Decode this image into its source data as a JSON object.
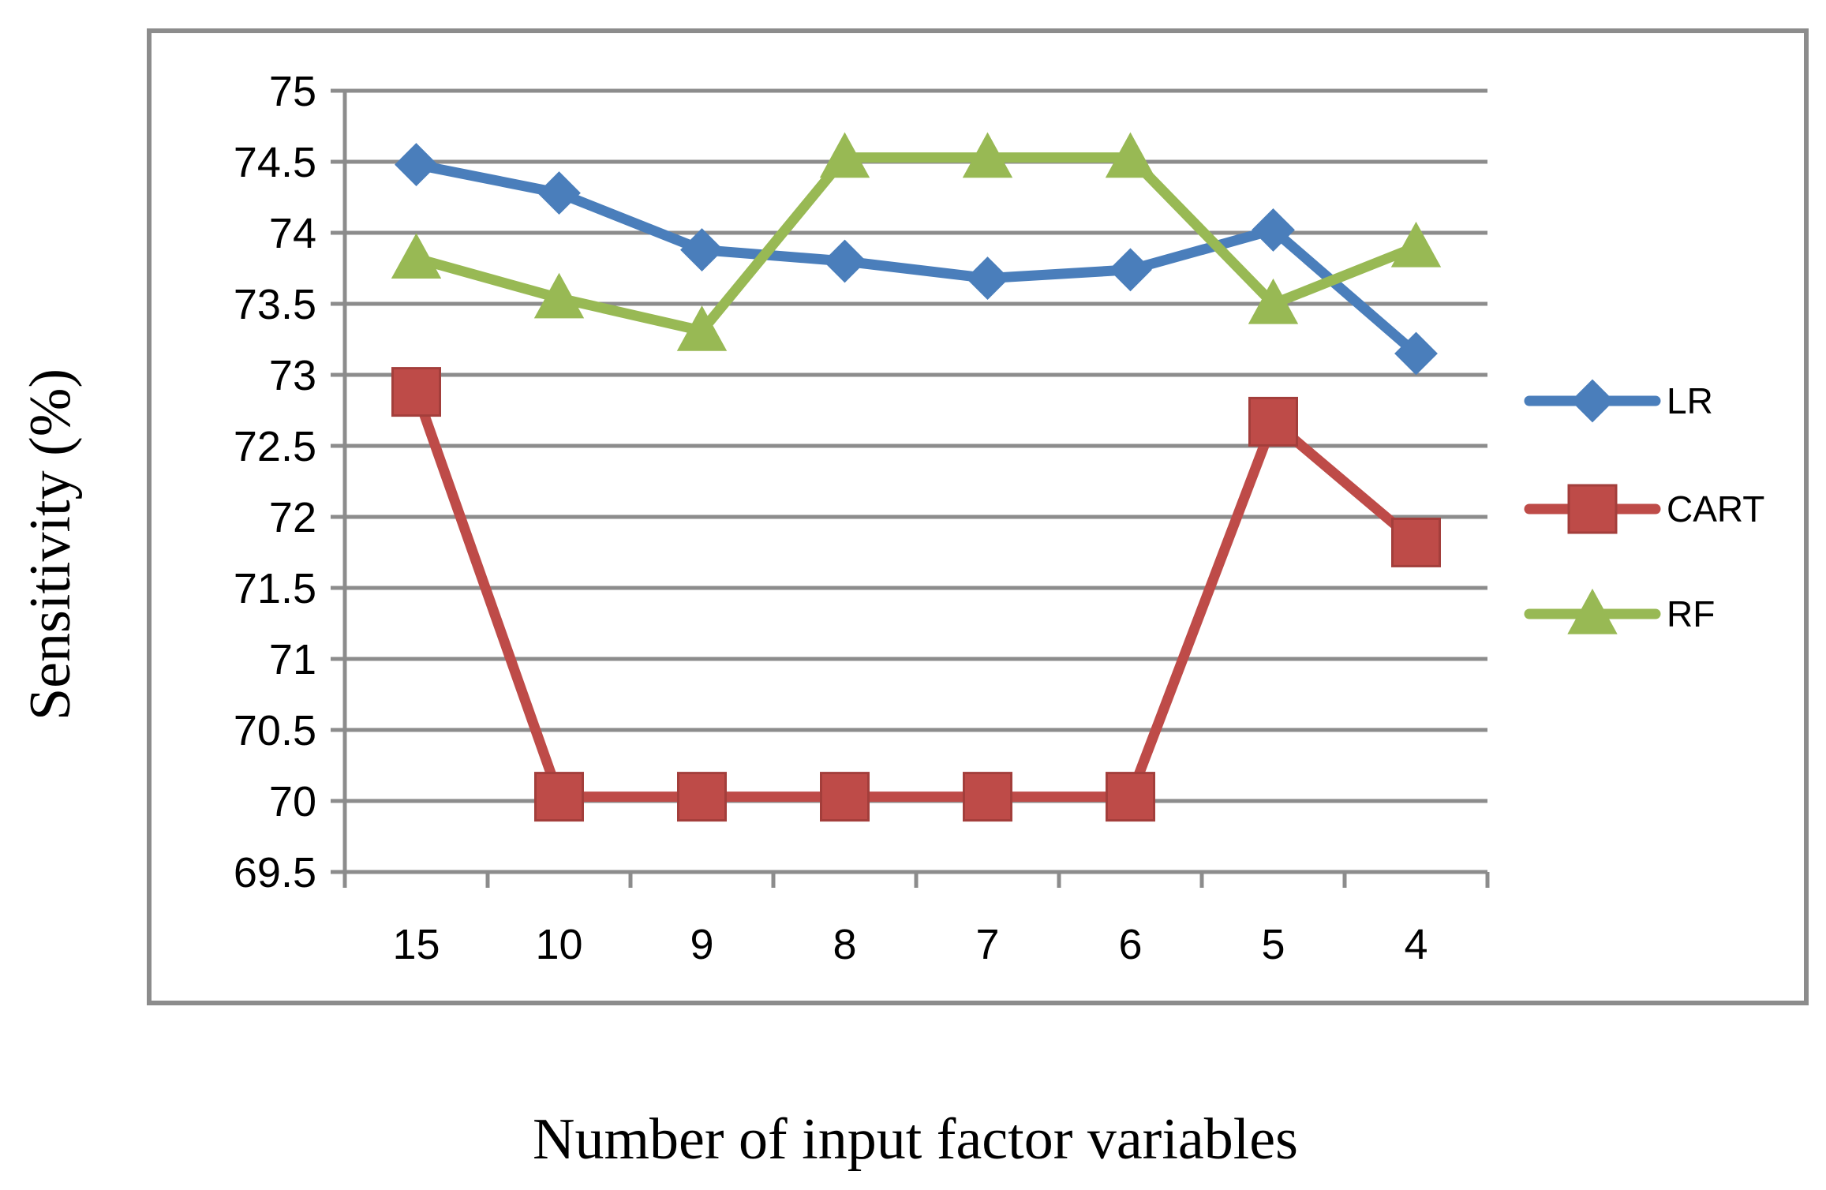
{
  "chart_data": {
    "type": "line",
    "categories": [
      "15",
      "10",
      "9",
      "8",
      "7",
      "6",
      "5",
      "4"
    ],
    "series": [
      {
        "name": "LR",
        "color": "#4a7ebb",
        "marker": "diamond",
        "values": [
          74.48,
          74.28,
          73.88,
          73.8,
          73.68,
          73.74,
          74.02,
          73.15
        ]
      },
      {
        "name": "CART",
        "color": "#be4b48",
        "marker": "square",
        "values": [
          72.88,
          70.03,
          70.03,
          70.03,
          70.03,
          70.03,
          72.67,
          71.82
        ]
      },
      {
        "name": "RF",
        "color": "#98b954",
        "marker": "triangle",
        "values": [
          73.82,
          73.54,
          73.31,
          74.53,
          74.53,
          74.53,
          73.5,
          73.9
        ]
      }
    ],
    "y_ticks": [
      "69.5",
      "70",
      "70.5",
      "71",
      "71.5",
      "72",
      "72.5",
      "73",
      "73.5",
      "74",
      "74.5",
      "75"
    ],
    "ylim": [
      69.5,
      75
    ],
    "ylabel": "Sensitivity (%)",
    "xlabel": "Number of input factor variables",
    "grid": true,
    "legend_position": "right"
  }
}
